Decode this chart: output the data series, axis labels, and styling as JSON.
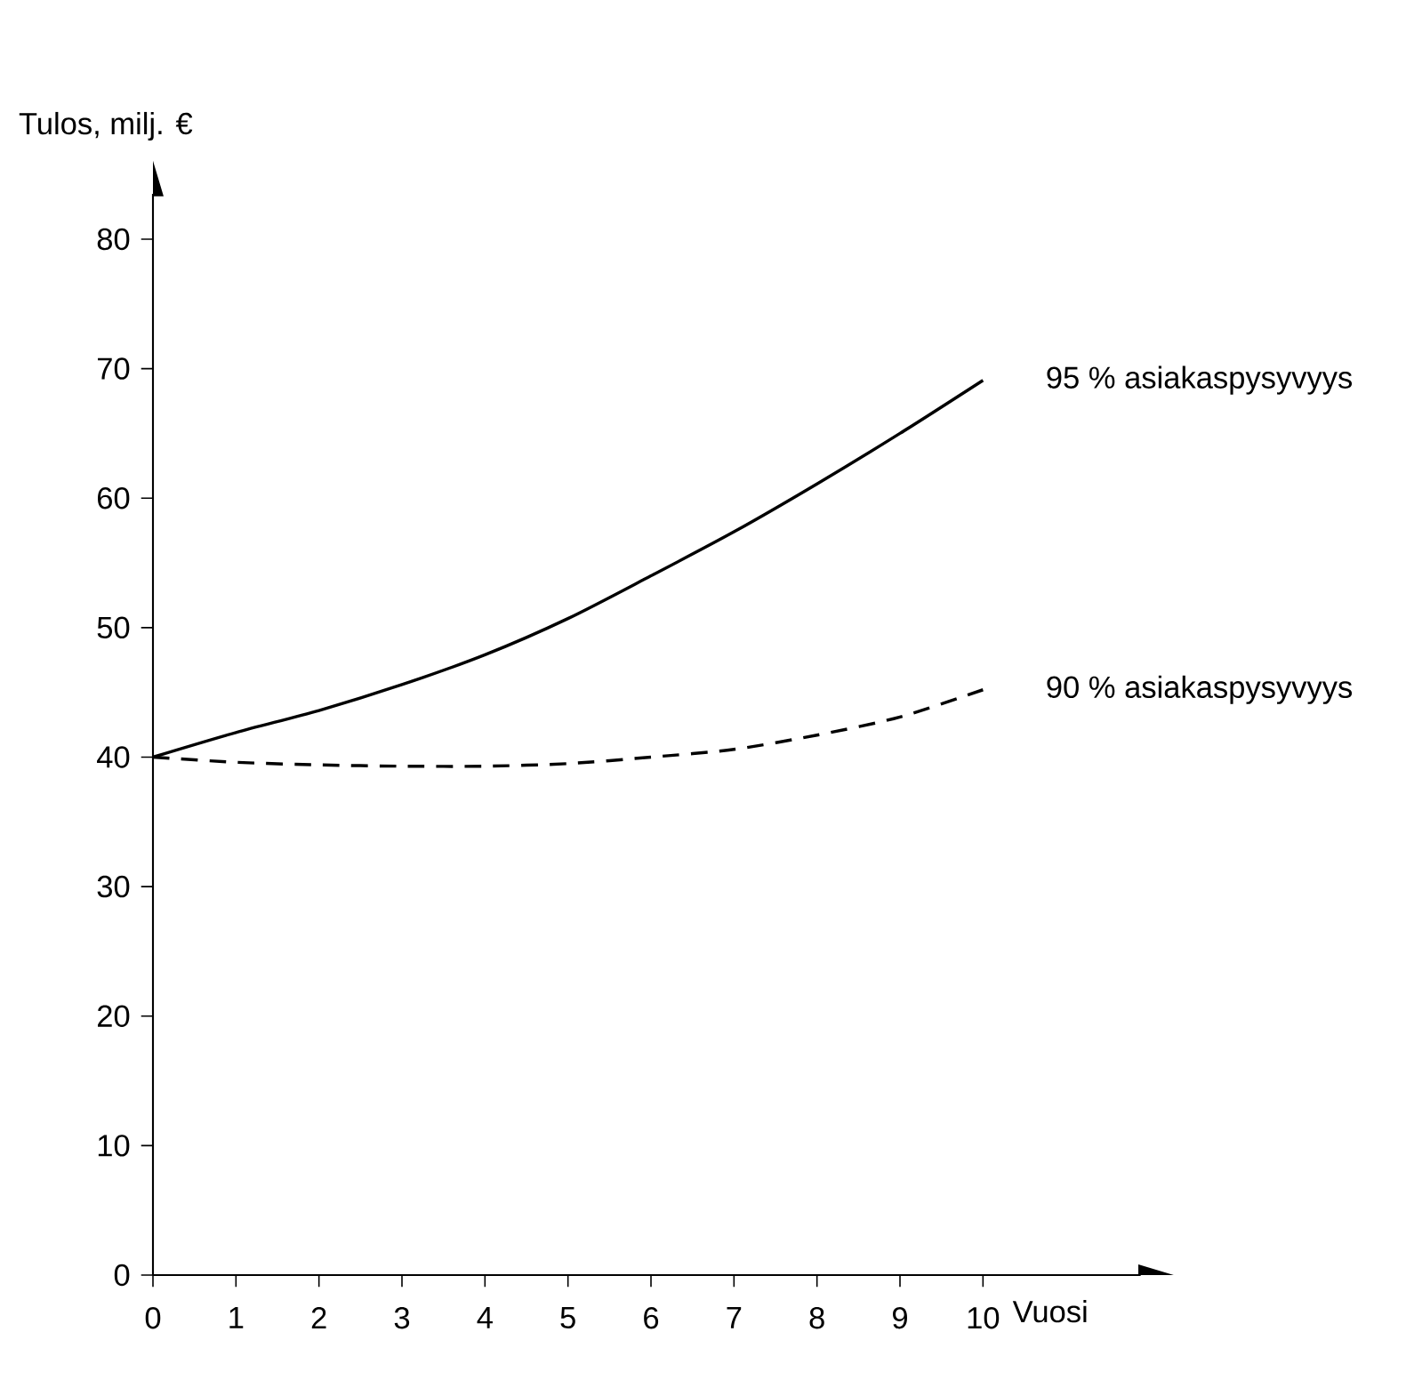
{
  "chart_data": {
    "type": "line",
    "xlabel": "Vuosi",
    "ylabel": "Tulos, milj. €",
    "x": [
      0,
      1,
      2,
      3,
      4,
      5,
      6,
      7,
      8,
      9,
      10
    ],
    "series": [
      {
        "name": "95 % asiakaspysyvyys",
        "color": "#000000",
        "line_style": "solid",
        "values": [
          40,
          41.9,
          43.6,
          45.6,
          47.9,
          50.7,
          54,
          57.4,
          61.1,
          65,
          69.1
        ]
      },
      {
        "name": "90 % asiakaspysyvyys",
        "color": "#000000",
        "line_style": "dashed",
        "values": [
          40,
          39.6,
          39.4,
          39.3,
          39.3,
          39.5,
          40,
          40.6,
          41.7,
          43.1,
          45.2
        ]
      }
    ],
    "xlim": [
      0,
      11.9
    ],
    "ylim": [
      0,
      83.5
    ],
    "xticks": [
      0,
      1,
      2,
      3,
      4,
      5,
      6,
      7,
      8,
      9,
      10
    ],
    "yticks": [
      0,
      10,
      20,
      30,
      40,
      50,
      60,
      70,
      80
    ]
  }
}
